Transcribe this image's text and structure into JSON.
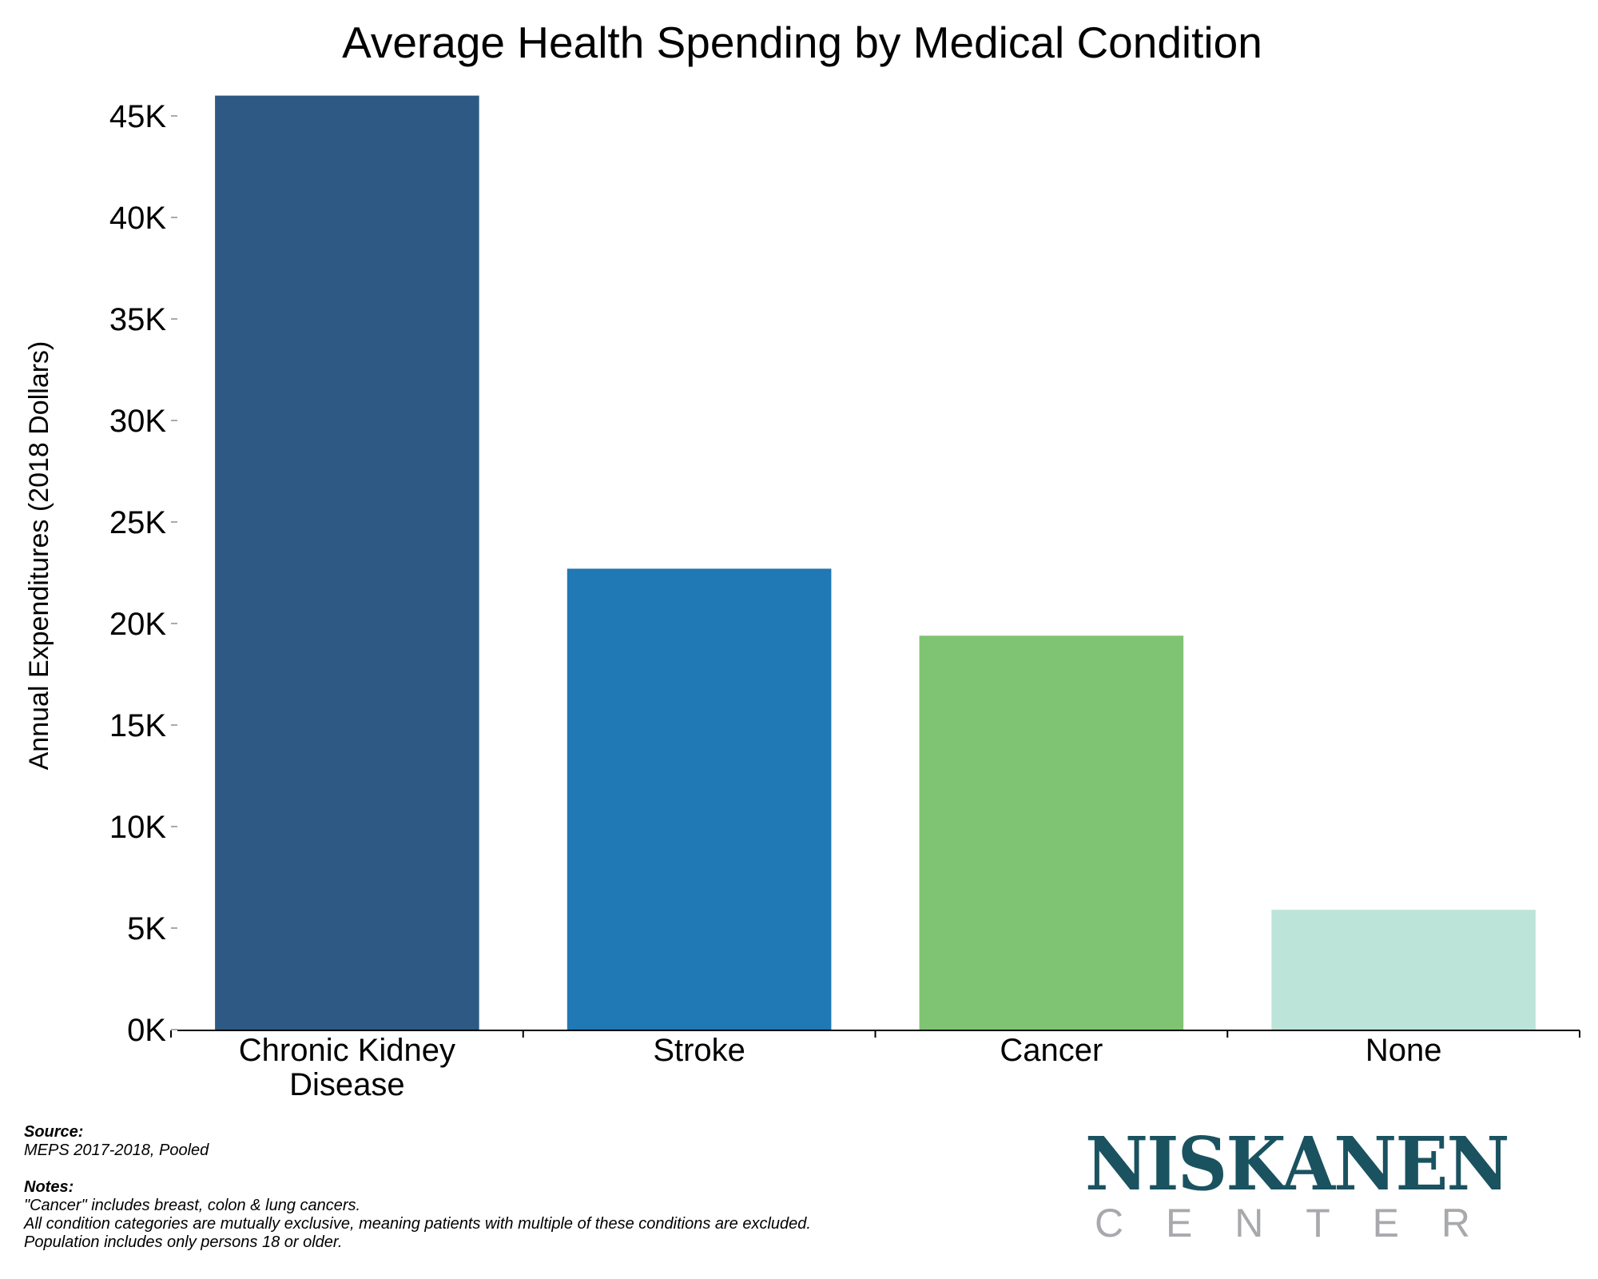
{
  "chart_data": {
    "type": "bar",
    "title": "Average Health Spending by Medical Condition",
    "xlabel": "",
    "ylabel": "Annual Expenditures (2018 Dollars)",
    "categories": [
      "Chronic Kidney Disease",
      "Stroke",
      "Cancer",
      "None"
    ],
    "category_label_lines": [
      [
        "Chronic Kidney",
        "Disease"
      ],
      [
        "Stroke"
      ],
      [
        "Cancer"
      ],
      [
        "None"
      ]
    ],
    "values": [
      46000,
      22700,
      19400,
      5900
    ],
    "colors": [
      "#2e5984",
      "#2078b4",
      "#7fc472",
      "#bde4d9"
    ],
    "ylim": [
      0,
      45000
    ],
    "yticks": [
      0,
      5000,
      10000,
      15000,
      20000,
      25000,
      30000,
      35000,
      40000,
      45000
    ],
    "ytick_labels": [
      "0K",
      "5K",
      "10K",
      "15K",
      "20K",
      "25K",
      "30K",
      "35K",
      "40K",
      "45K"
    ],
    "grid": false,
    "legend": "none"
  },
  "footer": {
    "source_heading": "Source:",
    "source_text": "MEPS 2017-2018, Pooled",
    "notes_heading": "Notes:",
    "notes": [
      "\"Cancer\" includes breast, colon & lung cancers.",
      "All condition categories are mutually exclusive, meaning patients with multiple of these conditions are excluded.",
      "Population includes only persons 18 or older."
    ]
  },
  "logo": {
    "name": "NISKANEN",
    "subtitle_letters": [
      "C",
      "E",
      "N",
      "T",
      "E",
      "R"
    ],
    "primary_color": "#1a5260",
    "secondary_color": "#a7a9ac"
  }
}
